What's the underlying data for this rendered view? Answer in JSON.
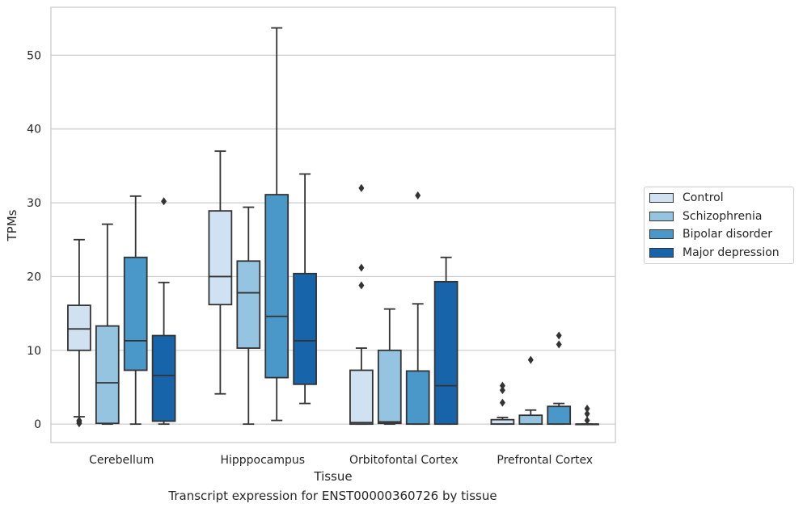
{
  "caption": "Transcript expression for ENST00000360726 by tissue",
  "chart_data": {
    "type": "box",
    "title": "",
    "xlabel": "Tissue",
    "ylabel": "TPMs",
    "ylim": [
      -2.5,
      56.5
    ],
    "yticks": [
      0,
      10,
      20,
      30,
      40,
      50
    ],
    "grid": "horizontal",
    "legend_position": "right",
    "categories": [
      "Cerebellum",
      "Hipppocampus",
      "Orbitofontal Cortex",
      "Prefrontal Cortex"
    ],
    "series": [
      {
        "name": "Control",
        "color": "#d0e1f2",
        "boxes": [
          {
            "whislo": 1.0,
            "q1": 10.0,
            "med": 12.9,
            "q3": 16.1,
            "whishi": 25.0,
            "fliers": [
              0.1,
              0.3,
              0.5
            ]
          },
          {
            "whislo": 4.1,
            "q1": 16.2,
            "med": 20.0,
            "q3": 28.9,
            "whishi": 37.0,
            "fliers": []
          },
          {
            "whislo": 0.0,
            "q1": 0.0,
            "med": 0.2,
            "q3": 7.3,
            "whishi": 10.3,
            "fliers": [
              18.8,
              21.2,
              32.0
            ]
          },
          {
            "whislo": 0.0,
            "q1": 0.0,
            "med": 0.0,
            "q3": 0.6,
            "whishi": 0.9,
            "fliers": [
              2.9,
              4.6,
              5.2
            ]
          }
        ]
      },
      {
        "name": "Schizophrenia",
        "color": "#94c4df",
        "boxes": [
          {
            "whislo": 0.0,
            "q1": 0.1,
            "med": 5.6,
            "q3": 13.3,
            "whishi": 27.1,
            "fliers": []
          },
          {
            "whislo": 0.0,
            "q1": 10.3,
            "med": 17.8,
            "q3": 22.1,
            "whishi": 29.4,
            "fliers": []
          },
          {
            "whislo": 0.0,
            "q1": 0.1,
            "med": 0.3,
            "q3": 10.0,
            "whishi": 15.6,
            "fliers": []
          },
          {
            "whislo": 0.0,
            "q1": 0.0,
            "med": 0.0,
            "q3": 1.2,
            "whishi": 1.9,
            "fliers": [
              8.7
            ]
          }
        ]
      },
      {
        "name": "Bipolar disorder",
        "color": "#4a98c9",
        "boxes": [
          {
            "whislo": 0.0,
            "q1": 7.3,
            "med": 11.3,
            "q3": 22.6,
            "whishi": 30.9,
            "fliers": []
          },
          {
            "whislo": 0.5,
            "q1": 6.3,
            "med": 14.6,
            "q3": 31.1,
            "whishi": 53.7,
            "fliers": []
          },
          {
            "whislo": 0.0,
            "q1": 0.0,
            "med": 0.0,
            "q3": 7.2,
            "whishi": 16.3,
            "fliers": [
              31.0
            ]
          },
          {
            "whislo": 0.0,
            "q1": 0.0,
            "med": 0.0,
            "q3": 2.4,
            "whishi": 2.8,
            "fliers": [
              10.8,
              12.0
            ]
          }
        ]
      },
      {
        "name": "Major depression",
        "color": "#1764ab",
        "boxes": [
          {
            "whislo": 0.0,
            "q1": 0.4,
            "med": 6.6,
            "q3": 12.0,
            "whishi": 19.2,
            "fliers": [
              30.2
            ]
          },
          {
            "whislo": 2.8,
            "q1": 5.4,
            "med": 11.3,
            "q3": 20.4,
            "whishi": 33.9,
            "fliers": []
          },
          {
            "whislo": 0.0,
            "q1": 0.0,
            "med": 5.2,
            "q3": 19.3,
            "whishi": 22.6,
            "fliers": []
          },
          {
            "whislo": 0.0,
            "q1": 0.0,
            "med": 0.0,
            "q3": 0.0,
            "whishi": 0.0,
            "fliers": [
              0.5,
              1.4,
              2.1
            ]
          }
        ]
      }
    ]
  }
}
